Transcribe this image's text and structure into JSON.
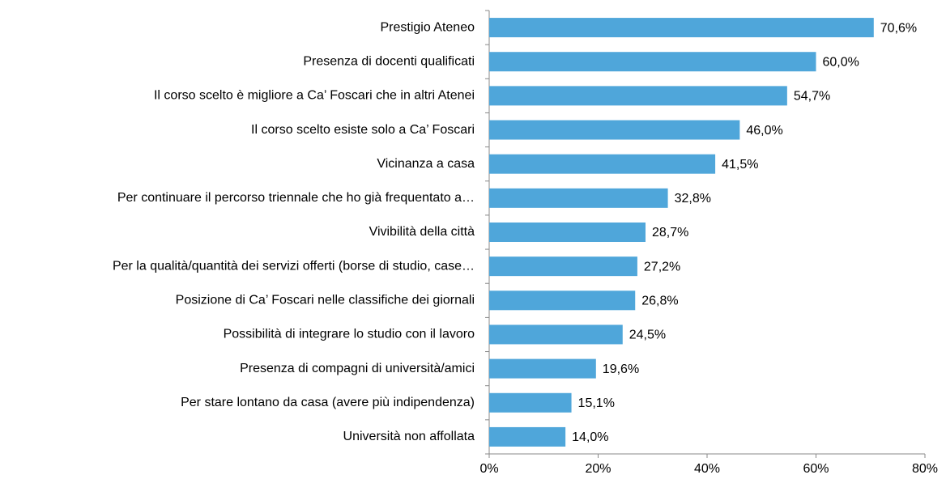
{
  "chart_data": {
    "type": "barh",
    "categories": [
      "Prestigio Ateneo",
      "Presenza di docenti qualificati",
      "Il corso scelto è migliore a Ca’ Foscari che in altri Atenei",
      "Il corso scelto esiste solo a Ca’ Foscari",
      "Vicinanza a casa",
      "Per continuare il percorso triennale che ho già frequentato a…",
      "Vivibilità della città",
      "Per la qualità/quantità dei servizi offerti (borse di studio, case…",
      "Posizione di Ca’ Foscari nelle classifiche dei giornali",
      "Possibilità di integrare lo studio con il lavoro",
      "Presenza di compagni di università/amici",
      "Per stare lontano da casa (avere più indipendenza)",
      "Università non affollata"
    ],
    "values": [
      70.6,
      60.0,
      54.7,
      46.0,
      41.5,
      32.8,
      28.7,
      27.2,
      26.8,
      24.5,
      19.6,
      15.1,
      14.0
    ],
    "value_labels": [
      "70,6%",
      "60,0%",
      "54,7%",
      "46,0%",
      "41,5%",
      "32,8%",
      "28,7%",
      "27,2%",
      "26,8%",
      "24,5%",
      "19,6%",
      "15,1%",
      "14,0%"
    ],
    "color": "#4fa6da",
    "xlim": [
      0,
      80
    ],
    "xticks": [
      {
        "value": 0,
        "label": "0%"
      },
      {
        "value": 20,
        "label": "20%"
      },
      {
        "value": 40,
        "label": "40%"
      },
      {
        "value": 60,
        "label": "60%"
      },
      {
        "value": 80,
        "label": "80%"
      }
    ]
  }
}
